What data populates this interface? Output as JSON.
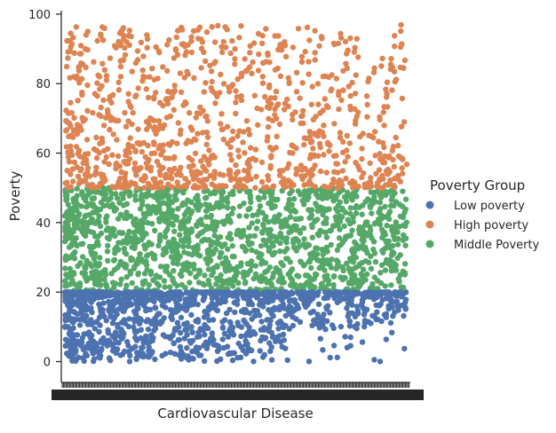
{
  "chart_data": {
    "type": "scatter",
    "style": "categorical strip plot with jitter",
    "xlabel": "Cardiovascular Disease",
    "ylabel": "Poverty",
    "ylim": [
      -6,
      101
    ],
    "yticks": [
      0,
      20,
      40,
      60,
      80,
      100
    ],
    "x_ticks_note": "x axis has a very dense row of categorical tick labels that overlap into an illegible black band",
    "legend": {
      "title": "Poverty Group",
      "placement": "right",
      "entries": [
        {
          "label": "Low poverty",
          "color": "#4c72b0"
        },
        {
          "label": "High poverty",
          "color": "#dd8452"
        },
        {
          "label": "Middle Poverty",
          "color": "#55a868"
        }
      ]
    },
    "series": [
      {
        "name": "Low poverty",
        "color": "#4c72b0",
        "y_range": [
          0,
          20
        ],
        "approx_points": 1200
      },
      {
        "name": "High poverty",
        "color": "#dd8452",
        "y_range": [
          50,
          97
        ],
        "approx_points": 1000
      },
      {
        "name": "Middle Poverty",
        "color": "#55a868",
        "y_range": [
          20,
          50
        ],
        "approx_points": 1500
      }
    ],
    "grid": false
  }
}
